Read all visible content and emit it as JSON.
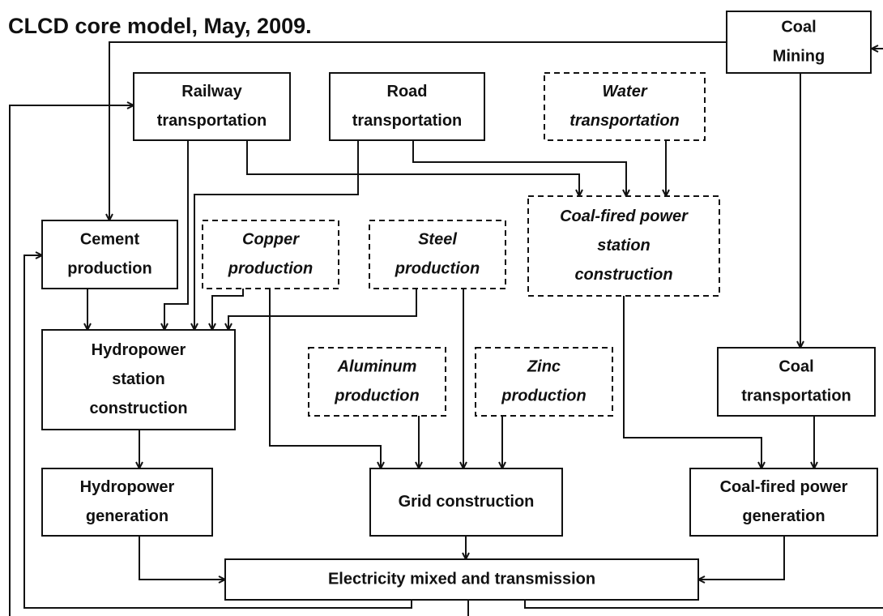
{
  "header": {
    "title": "CLCD core model, May, 2009."
  },
  "nodes": [
    {
      "label": [
        "Coal",
        "Mining"
      ]
    },
    {
      "label": [
        "Railway",
        "transportation"
      ]
    },
    {
      "label": [
        "Road",
        "transportation"
      ]
    },
    {
      "label": [
        "Water",
        "transportation"
      ]
    },
    {
      "label": [
        "Coal-fired power",
        "station",
        "construction"
      ]
    },
    {
      "label": [
        "Cement",
        "production"
      ]
    },
    {
      "label": [
        "Copper",
        "production"
      ]
    },
    {
      "label": [
        "Steel",
        "production"
      ]
    },
    {
      "label": [
        "Hydropower",
        "station",
        "construction"
      ]
    },
    {
      "label": [
        "Aluminum",
        "production"
      ]
    },
    {
      "label": [
        "Zinc",
        "production"
      ]
    },
    {
      "label": [
        "Coal",
        "transportation"
      ]
    },
    {
      "label": [
        "Hydropower",
        "generation"
      ]
    },
    {
      "label": [
        "Grid construction"
      ]
    },
    {
      "label": [
        "Coal-fired power",
        "generation"
      ]
    },
    {
      "label": [
        "Electricity mixed and transmission"
      ]
    }
  ]
}
